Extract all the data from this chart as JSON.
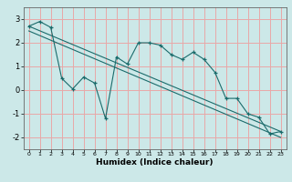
{
  "bg_color": "#cce8e8",
  "grid_color": "#e8a8a8",
  "line_color": "#1a6b6b",
  "xlabel": "Humidex (Indice chaleur)",
  "ylim": [
    -2.5,
    3.5
  ],
  "xlim": [
    -0.5,
    23.5
  ],
  "yticks": [
    -2,
    -1,
    0,
    1,
    2,
    3
  ],
  "xticks": [
    0,
    1,
    2,
    3,
    4,
    5,
    6,
    7,
    8,
    9,
    10,
    11,
    12,
    13,
    14,
    15,
    16,
    17,
    18,
    19,
    20,
    21,
    22,
    23
  ],
  "series1_x": [
    0,
    1,
    2,
    3,
    4,
    5,
    6,
    7,
    8,
    9,
    10,
    11,
    12,
    13,
    14,
    15,
    16,
    17,
    18,
    19,
    20,
    21,
    22,
    23
  ],
  "series1_y": [
    2.7,
    2.9,
    2.65,
    0.5,
    0.05,
    0.55,
    0.3,
    -1.2,
    1.4,
    1.1,
    2.0,
    2.0,
    1.9,
    1.5,
    1.3,
    1.6,
    1.3,
    0.75,
    -0.35,
    -0.35,
    -1.0,
    -1.15,
    -1.85,
    -1.75
  ],
  "series2_x": [
    0,
    23
  ],
  "series2_y": [
    2.7,
    -1.75
  ],
  "series3_x": [
    0,
    23
  ],
  "series3_y": [
    2.5,
    -2.0
  ]
}
